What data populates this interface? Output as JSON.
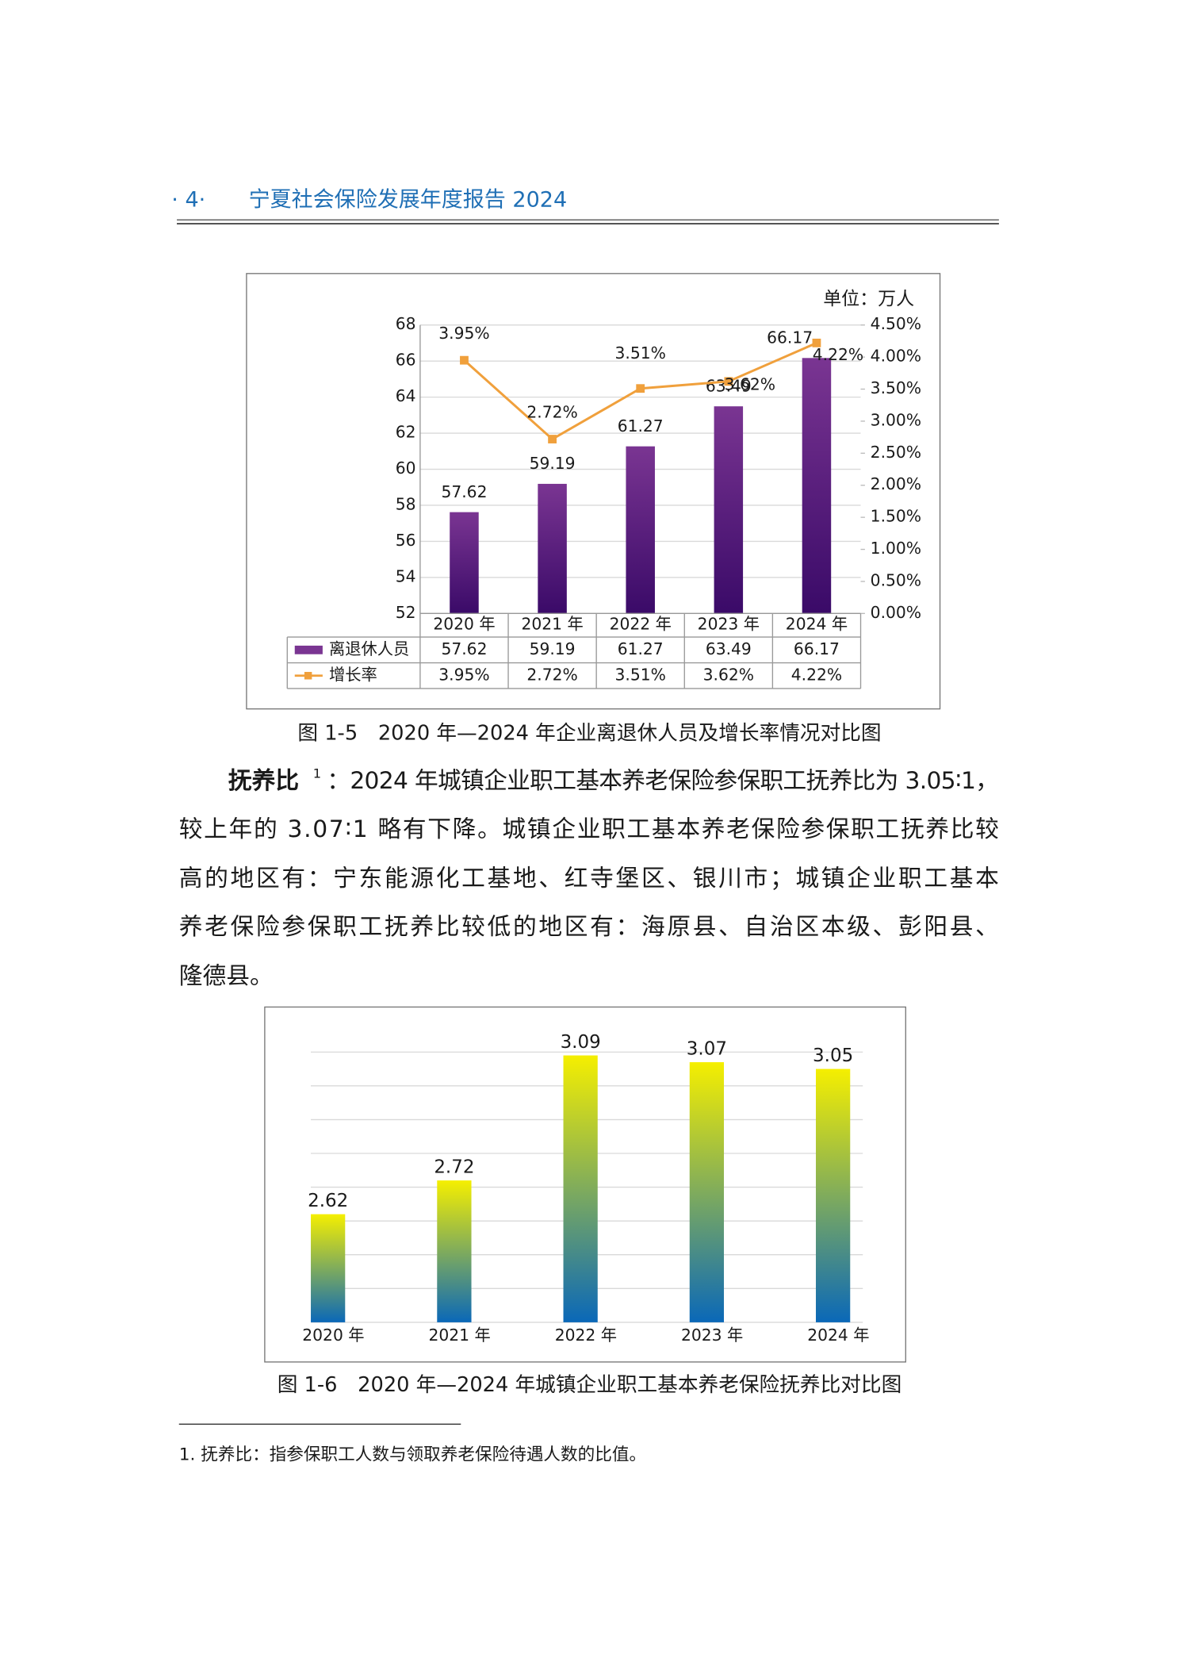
{
  "header": {
    "page_number": "· 4·",
    "title": "宁夏社会保险发展年度报告  2024"
  },
  "chart_data": [
    {
      "type": "bar",
      "unit": "单位：万人",
      "categories": [
        "2020 年",
        "2021 年",
        "2022 年",
        "2023 年",
        "2024 年"
      ],
      "series": [
        {
          "name": "离退休人员",
          "type": "bar",
          "color": "#7a3592",
          "values": [
            57.62,
            59.19,
            61.27,
            63.49,
            66.17
          ]
        },
        {
          "name": "增长率",
          "type": "line",
          "axis": "y2",
          "color": "#f0a03c",
          "values": [
            3.95,
            2.72,
            3.51,
            3.62,
            4.22
          ],
          "value_labels": [
            "3.95%",
            "2.72%",
            "3.51%",
            "3.62%",
            "4.22%"
          ]
        }
      ],
      "ylim": [
        52,
        68
      ],
      "yticks": [
        52,
        54,
        56,
        58,
        60,
        62,
        64,
        66,
        68
      ],
      "y2lim": [
        0,
        4.5
      ],
      "y2ticks": [
        {
          "value": 0,
          "label": "0.00%"
        },
        {
          "value": 0.5,
          "label": "0.50%"
        },
        {
          "value": 1,
          "label": "1.00%"
        },
        {
          "value": 1.5,
          "label": "1.50%"
        },
        {
          "value": 2,
          "label": "2.00%"
        },
        {
          "value": 2.5,
          "label": "2.50%"
        },
        {
          "value": 3,
          "label": "3.00%"
        },
        {
          "value": 3.5,
          "label": "3.50%"
        },
        {
          "value": 4,
          "label": "4.00%"
        },
        {
          "value": 4.5,
          "label": "4.50%"
        }
      ],
      "grid": true,
      "data_table": true
    },
    {
      "type": "bar",
      "categories": [
        "2020 年",
        "2021 年",
        "2022 年",
        "2023 年",
        "2024 年"
      ],
      "values": [
        2.62,
        2.72,
        3.09,
        3.07,
        3.05
      ],
      "gradient": [
        "#f5ef00",
        "#0a68b8"
      ],
      "ylim": [
        2.3,
        3.1
      ],
      "yticks": [
        2.3,
        2.4,
        2.5,
        2.6,
        2.7,
        2.8,
        2.9,
        3.0,
        3.1
      ],
      "grid": true,
      "tick_labels": false
    }
  ],
  "captions": [
    "图 1-5　2020 年—2024 年企业离退休人员及增长率情况对比图",
    "图 1-6　2020 年—2024 年城镇企业职工基本养老保险抚养比对比图"
  ],
  "paragraph": {
    "lead": "抚养比",
    "note_ref": "1",
    "lines": [
      "：2024 年城镇企业职工基本养老保险参保职工抚养比为 3.05∶1，",
      "较上年的 3.07∶1 略有下降。城镇企业职工基本养老保险参保职工抚养比较",
      "高的地区有：宁东能源化工基地、红寺堡区、银川市；城镇企业职工基本",
      "养老保险参保职工抚养比较低的地区有：海原县、自治区本级、彭阳县、",
      "隆德县。"
    ]
  },
  "footnote": "1. 抚养比：指参保职工人数与领取养老保险待遇人数的比值。"
}
